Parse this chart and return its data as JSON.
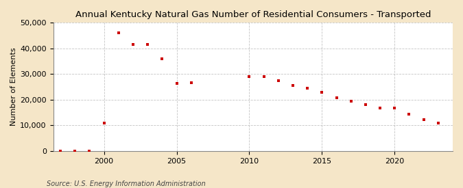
{
  "title": "Annual Kentucky Natural Gas Number of Residential Consumers - Transported",
  "ylabel": "Number of Elements",
  "source": "Source: U.S. Energy Information Administration",
  "background_color": "#f5e6c8",
  "plot_bg_color": "#ffffff",
  "marker_color": "#cc0000",
  "years": [
    1997,
    1998,
    1999,
    2000,
    2001,
    2002,
    2003,
    2004,
    2005,
    2006,
    2010,
    2011,
    2012,
    2013,
    2014,
    2015,
    2016,
    2017,
    2018,
    2019,
    2020,
    2021,
    2022,
    2023
  ],
  "values": [
    0,
    0,
    0,
    11000,
    46000,
    41500,
    41500,
    36000,
    26500,
    26700,
    29000,
    29000,
    27500,
    25500,
    24500,
    23000,
    20800,
    19500,
    18000,
    16700,
    16700,
    14500,
    12200,
    11000
  ],
  "ylim": [
    0,
    50000
  ],
  "yticks": [
    0,
    10000,
    20000,
    30000,
    40000,
    50000
  ],
  "xlim": [
    1996.5,
    2024
  ],
  "xticks": [
    2000,
    2005,
    2010,
    2015,
    2020
  ],
  "grid_color": "#aaaaaa",
  "title_fontsize": 9.5,
  "label_fontsize": 8,
  "tick_fontsize": 8,
  "source_fontsize": 7
}
